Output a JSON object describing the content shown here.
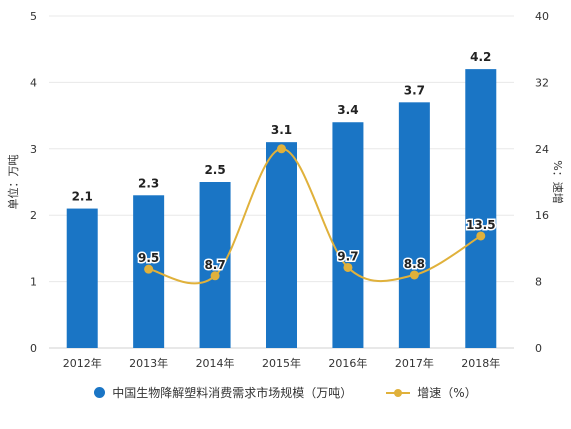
{
  "chart_data": {
    "type": "bar-line",
    "categories": [
      "2012年",
      "2013年",
      "2014年",
      "2015年",
      "2016年",
      "2017年",
      "2018年"
    ],
    "series": [
      {
        "name": "中国生物降解塑料消费需求市场规模（万吨）",
        "type": "bar",
        "axis": "left",
        "values": [
          2.1,
          2.3,
          2.5,
          3.1,
          3.4,
          3.7,
          4.2
        ],
        "labels": [
          "2.1",
          "2.3",
          "2.5",
          "3.1",
          "3.4",
          "3.7",
          "4.2"
        ]
      },
      {
        "name": "增速（%）",
        "type": "line",
        "axis": "right",
        "values": [
          null,
          9.5,
          8.7,
          24,
          9.7,
          8.8,
          13.5
        ],
        "labels": [
          "",
          "9.5",
          "8.7",
          "",
          "9.7",
          "8.8",
          "13.5"
        ]
      }
    ],
    "y_left": {
      "label": "单位：万吨",
      "min": 0,
      "max": 5,
      "ticks": [
        "0",
        "1",
        "2",
        "3",
        "4",
        "5"
      ]
    },
    "y_right": {
      "label": "%：速增",
      "min": 0,
      "max": 40,
      "ticks": [
        "0",
        "8",
        "16",
        "24",
        "32",
        "40"
      ]
    },
    "grid": true,
    "legend_position": "bottom"
  },
  "colors": {
    "bar": "#1a75c5",
    "line": "#e0b13b",
    "grid": "#e8e8e8",
    "axis": "#d0d0d0"
  },
  "legend": {
    "bar_label": "中国生物降解塑料消费需求市场规模（万吨）",
    "line_label": "增速（%）"
  }
}
